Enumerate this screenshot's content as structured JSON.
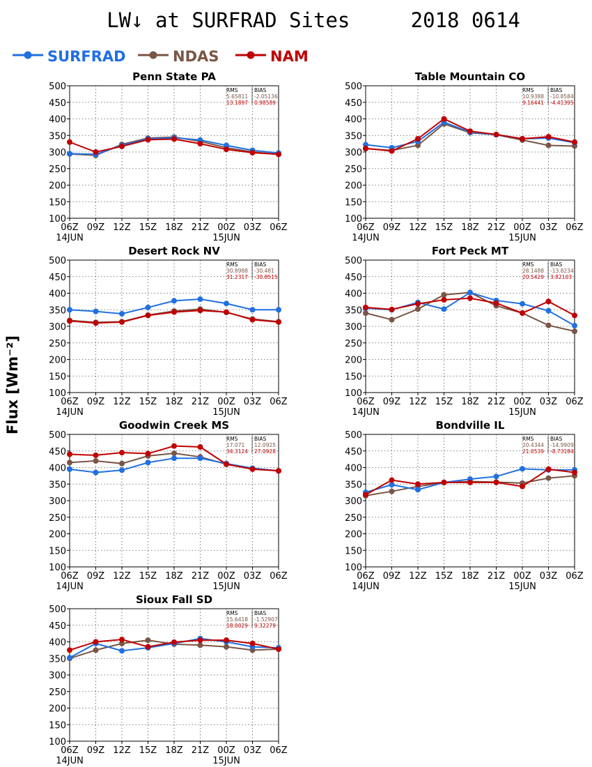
{
  "title": "LW↓ at SURFRAD Sites     2018 0614",
  "y_axis_label": "Flux [Wm⁻²]",
  "legend": [
    {
      "name": "SURFRAD",
      "color": "#2070e0"
    },
    {
      "name": "NDAS",
      "color": "#7a5545"
    },
    {
      "name": "NAM",
      "color": "#c00000"
    }
  ],
  "stats_headers": [
    "RMS",
    "BIAS"
  ],
  "chart_data": [
    {
      "type": "line",
      "title": "Penn State PA",
      "categories": [
        "06Z",
        "09Z",
        "12Z",
        "15Z",
        "18Z",
        "21Z",
        "00Z",
        "03Z",
        "06Z"
      ],
      "date_labels": [
        {
          "index": 0,
          "text": "14JUN"
        },
        {
          "index": 6,
          "text": "15JUN"
        }
      ],
      "ylim": [
        100,
        500
      ],
      "yticks": [
        100,
        150,
        200,
        250,
        300,
        350,
        400,
        450,
        500
      ],
      "grid": true,
      "series": [
        {
          "name": "SURFRAD",
          "values": [
            295,
            293,
            320,
            340,
            343,
            336,
            320,
            305,
            297
          ]
        },
        {
          "name": "NDAS",
          "values": [
            294,
            290,
            323,
            342,
            345,
            332,
            313,
            300,
            293
          ]
        },
        {
          "name": "NAM",
          "values": [
            330,
            300,
            317,
            337,
            339,
            325,
            308,
            298,
            293
          ]
        }
      ],
      "stats": [
        {
          "rms": "5.65811",
          "bias": "-2.05136"
        },
        {
          "rms": "13.1897",
          "bias": "0.98589"
        }
      ]
    },
    {
      "type": "line",
      "title": "Table Mountain CO",
      "categories": [
        "06Z",
        "09Z",
        "12Z",
        "15Z",
        "18Z",
        "21Z",
        "00Z",
        "03Z",
        "06Z"
      ],
      "date_labels": [
        {
          "index": 0,
          "text": "14JUN"
        },
        {
          "index": 6,
          "text": "15JUN"
        }
      ],
      "ylim": [
        100,
        500
      ],
      "yticks": [
        100,
        150,
        200,
        250,
        300,
        350,
        400,
        450,
        500
      ],
      "grid": true,
      "series": [
        {
          "name": "SURFRAD",
          "values": [
            322,
            313,
            332,
            390,
            360,
            352,
            340,
            342,
            328
          ]
        },
        {
          "name": "NDAS",
          "values": [
            310,
            305,
            320,
            385,
            358,
            352,
            336,
            320,
            318
          ]
        },
        {
          "name": "NAM",
          "values": [
            311,
            303,
            340,
            400,
            363,
            353,
            340,
            346,
            330
          ]
        }
      ],
      "stats": [
        {
          "rms": "10.9388",
          "bias": "-10.8584"
        },
        {
          "rms": "9.16441",
          "bias": "-4.41395"
        }
      ]
    },
    {
      "type": "line",
      "title": "Desert Rock NV",
      "categories": [
        "06Z",
        "09Z",
        "12Z",
        "15Z",
        "18Z",
        "21Z",
        "00Z",
        "03Z",
        "06Z"
      ],
      "date_labels": [
        {
          "index": 0,
          "text": "14JUN"
        },
        {
          "index": 6,
          "text": "15JUN"
        }
      ],
      "ylim": [
        100,
        500
      ],
      "yticks": [
        100,
        150,
        200,
        250,
        300,
        350,
        400,
        450,
        500
      ],
      "grid": true,
      "series": [
        {
          "name": "SURFRAD",
          "values": [
            350,
            345,
            338,
            357,
            377,
            382,
            369,
            350,
            350
          ]
        },
        {
          "name": "NDAS",
          "values": [
            318,
            312,
            314,
            334,
            346,
            352,
            342,
            322,
            314
          ]
        },
        {
          "name": "NAM",
          "values": [
            316,
            310,
            313,
            333,
            343,
            348,
            343,
            320,
            313
          ]
        }
      ],
      "stats": [
        {
          "rms": "30.8988",
          "bias": "-30.481"
        },
        {
          "rms": "31.2317",
          "bias": "-30.8515"
        }
      ]
    },
    {
      "type": "line",
      "title": "Fort Peck MT",
      "categories": [
        "06Z",
        "09Z",
        "12Z",
        "15Z",
        "18Z",
        "21Z",
        "00Z",
        "03Z",
        "06Z"
      ],
      "date_labels": [
        {
          "index": 0,
          "text": "14JUN"
        },
        {
          "index": 6,
          "text": "15JUN"
        }
      ],
      "ylim": [
        100,
        500
      ],
      "yticks": [
        100,
        150,
        200,
        250,
        300,
        350,
        400,
        450,
        500
      ],
      "grid": true,
      "series": [
        {
          "name": "SURFRAD",
          "values": [
            355,
            350,
            372,
            352,
            402,
            378,
            368,
            347,
            302
          ]
        },
        {
          "name": "NDAS",
          "values": [
            340,
            320,
            352,
            395,
            402,
            362,
            340,
            303,
            285
          ]
        },
        {
          "name": "NAM",
          "values": [
            357,
            351,
            368,
            380,
            385,
            370,
            340,
            375,
            333
          ]
        }
      ],
      "stats": [
        {
          "rms": "28.1488",
          "bias": "-13.8234"
        },
        {
          "rms": "20.5429",
          "bias": "3.82103"
        }
      ]
    },
    {
      "type": "line",
      "title": "Goodwin Creek MS",
      "categories": [
        "06Z",
        "09Z",
        "12Z",
        "15Z",
        "18Z",
        "21Z",
        "00Z",
        "03Z",
        "06Z"
      ],
      "date_labels": [
        {
          "index": 0,
          "text": "14JUN"
        },
        {
          "index": 6,
          "text": "15JUN"
        }
      ],
      "ylim": [
        100,
        500
      ],
      "yticks": [
        100,
        150,
        200,
        250,
        300,
        350,
        400,
        450,
        500
      ],
      "grid": true,
      "series": [
        {
          "name": "SURFRAD",
          "values": [
            395,
            385,
            392,
            415,
            428,
            428,
            412,
            398,
            390
          ]
        },
        {
          "name": "NDAS",
          "values": [
            415,
            420,
            412,
            435,
            443,
            432,
            410,
            397,
            390
          ]
        },
        {
          "name": "NAM",
          "values": [
            440,
            437,
            445,
            442,
            465,
            462,
            410,
            395,
            390
          ]
        }
      ],
      "stats": [
        {
          "rms": "17.071",
          "bias": "12.0925"
        },
        {
          "rms": "34.3124",
          "bias": "27.0928"
        }
      ]
    },
    {
      "type": "line",
      "title": "Bondville IL",
      "categories": [
        "06Z",
        "09Z",
        "12Z",
        "15Z",
        "18Z",
        "21Z",
        "00Z",
        "03Z",
        "06Z"
      ],
      "date_labels": [
        {
          "index": 0,
          "text": "14JUN"
        },
        {
          "index": 6,
          "text": "15JUN"
        }
      ],
      "ylim": [
        100,
        500
      ],
      "yticks": [
        100,
        150,
        200,
        250,
        300,
        350,
        400,
        450,
        500
      ],
      "grid": true,
      "series": [
        {
          "name": "SURFRAD",
          "values": [
            325,
            348,
            333,
            355,
            365,
            373,
            396,
            393,
            393
          ]
        },
        {
          "name": "NDAS",
          "values": [
            315,
            328,
            343,
            355,
            358,
            356,
            353,
            368,
            375
          ]
        },
        {
          "name": "NAM",
          "values": [
            318,
            362,
            350,
            355,
            355,
            355,
            343,
            395,
            385
          ]
        }
      ],
      "stats": [
        {
          "rms": "20.4344",
          "bias": "-14.9909"
        },
        {
          "rms": "21.0539",
          "bias": "-8.73184"
        }
      ]
    },
    {
      "type": "line",
      "title": "Sioux Fall SD",
      "categories": [
        "06Z",
        "09Z",
        "12Z",
        "15Z",
        "18Z",
        "21Z",
        "00Z",
        "03Z",
        "06Z"
      ],
      "date_labels": [
        {
          "index": 0,
          "text": "14JUN"
        },
        {
          "index": 6,
          "text": "15JUN"
        }
      ],
      "ylim": [
        100,
        500
      ],
      "yticks": [
        100,
        150,
        200,
        250,
        300,
        350,
        400,
        450,
        500
      ],
      "grid": true,
      "series": [
        {
          "name": "SURFRAD",
          "values": [
            352,
            395,
            373,
            382,
            395,
            410,
            400,
            385,
            382
          ]
        },
        {
          "name": "NDAS",
          "values": [
            350,
            375,
            395,
            405,
            393,
            390,
            385,
            375,
            378
          ]
        },
        {
          "name": "NAM",
          "values": [
            375,
            400,
            407,
            385,
            399,
            405,
            405,
            395,
            378
          ]
        }
      ],
      "stats": [
        {
          "rms": "15.6418",
          "bias": "-1.52907"
        },
        {
          "rms": "18.0029",
          "bias": "9.32279"
        }
      ]
    }
  ]
}
